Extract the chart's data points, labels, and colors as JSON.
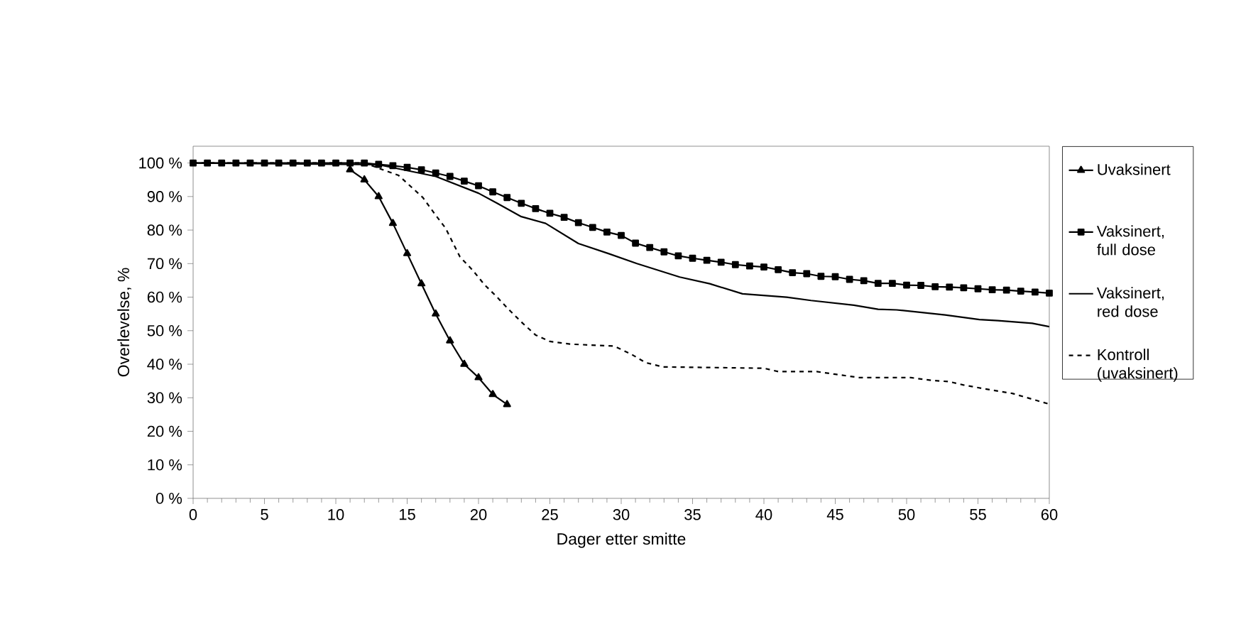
{
  "chart_data": {
    "type": "line",
    "xlabel": "Dager etter smitte",
    "ylabel": "Overlevelse, %",
    "xlim": [
      0,
      60
    ],
    "xticks": [
      0,
      5,
      10,
      15,
      20,
      25,
      30,
      35,
      40,
      45,
      50,
      55,
      60
    ],
    "ylim": [
      0,
      105
    ],
    "yticks": [
      {
        "value": 0,
        "label": "0 %"
      },
      {
        "value": 10,
        "label": "10 %"
      },
      {
        "value": 20,
        "label": "20 %"
      },
      {
        "value": 30,
        "label": "30 %"
      },
      {
        "value": 40,
        "label": "40 %"
      },
      {
        "value": 50,
        "label": "50 %"
      },
      {
        "value": 60,
        "label": "60 %"
      },
      {
        "value": 70,
        "label": "70 %"
      },
      {
        "value": 80,
        "label": "80 %"
      },
      {
        "value": 90,
        "label": "90 %"
      },
      {
        "value": 100,
        "label": "100 %"
      }
    ],
    "grid": false,
    "legend": "right",
    "series": [
      {
        "name": "Uvaksinert",
        "color": "#000000",
        "marker": "triangle",
        "line_style": "solid",
        "x": [
          11,
          12,
          13,
          14,
          15,
          16,
          17,
          18,
          19,
          20,
          21,
          22
        ],
        "values": [
          98,
          95,
          90,
          82,
          73,
          64,
          55,
          47,
          40,
          36,
          31,
          28
        ]
      },
      {
        "name": "Vaksinert, full dose",
        "color": "#000000",
        "marker": "square",
        "line_style": "solid",
        "x": [
          0,
          1,
          2,
          3,
          4,
          5,
          6,
          7,
          8,
          9,
          10,
          11,
          12,
          13,
          14,
          15,
          16,
          17,
          18,
          19,
          20,
          21,
          22,
          23,
          24,
          25,
          26,
          27,
          28,
          29,
          30,
          31,
          32,
          33,
          34,
          35,
          36,
          37,
          38,
          39,
          40,
          41,
          42,
          43,
          44,
          45,
          46,
          47,
          48,
          49,
          50,
          51,
          52,
          53,
          54,
          55,
          56,
          57,
          58,
          59,
          60
        ],
        "values": [
          100,
          100,
          100,
          100,
          100,
          100,
          100,
          100,
          100,
          100,
          100,
          100,
          100,
          99.6,
          99.2,
          98.7,
          98,
          97,
          96,
          94.6,
          93.2,
          91.4,
          89.7,
          88,
          86.4,
          85,
          83.8,
          82.2,
          80.8,
          79.4,
          78.4,
          76.1,
          74.8,
          73.5,
          72.3,
          71.6,
          71,
          70.4,
          69.7,
          69.3,
          69,
          68.2,
          67.3,
          67,
          66.2,
          66.1,
          65.3,
          64.9,
          64.1,
          64.1,
          63.6,
          63.5,
          63.1,
          63,
          62.8,
          62.5,
          62.2,
          62.1,
          61.8,
          61.5,
          61.2
        ]
      },
      {
        "name": "Vaksinert, red dose",
        "color": "#000000",
        "marker": "none",
        "line_style": "solid",
        "x": [
          0,
          13,
          17,
          20,
          21.3,
          23,
          24.7,
          27,
          29.1,
          31.1,
          34.1,
          36.2,
          38.5,
          41.6,
          43.3,
          46.3,
          48,
          49.3,
          52.7,
          55.1,
          56.4,
          58.8,
          60
        ],
        "values": [
          100,
          99.5,
          96,
          91,
          88,
          84,
          82,
          76,
          73,
          70,
          66,
          64,
          61,
          60,
          59,
          57.6,
          56.4,
          56.2,
          54.7,
          53.3,
          53,
          52.2,
          51.2
        ]
      },
      {
        "name": "Kontroll (uvaksinert)",
        "color": "#000000",
        "marker": "none",
        "line_style": "dashed",
        "x": [
          0,
          12,
          14.4,
          16.1,
          16.9,
          17.7,
          18.7,
          19.6,
          20.4,
          21.3,
          22.1,
          23.1,
          24,
          25,
          26.4,
          29.5,
          30.7,
          31.7,
          32.9,
          40,
          41,
          43.7,
          45,
          46.7,
          50.3,
          51.7,
          53,
          54,
          55.4,
          57.4,
          60
        ],
        "values": [
          100,
          100,
          96.3,
          89.7,
          85,
          80.5,
          72,
          68,
          63.8,
          60,
          56.4,
          52.2,
          48.7,
          46.8,
          46,
          45.4,
          43,
          40.5,
          39.2,
          38.8,
          37.8,
          37.8,
          37,
          36,
          36,
          35.2,
          34.8,
          33.8,
          32.7,
          31.3,
          28.1
        ]
      }
    ]
  }
}
